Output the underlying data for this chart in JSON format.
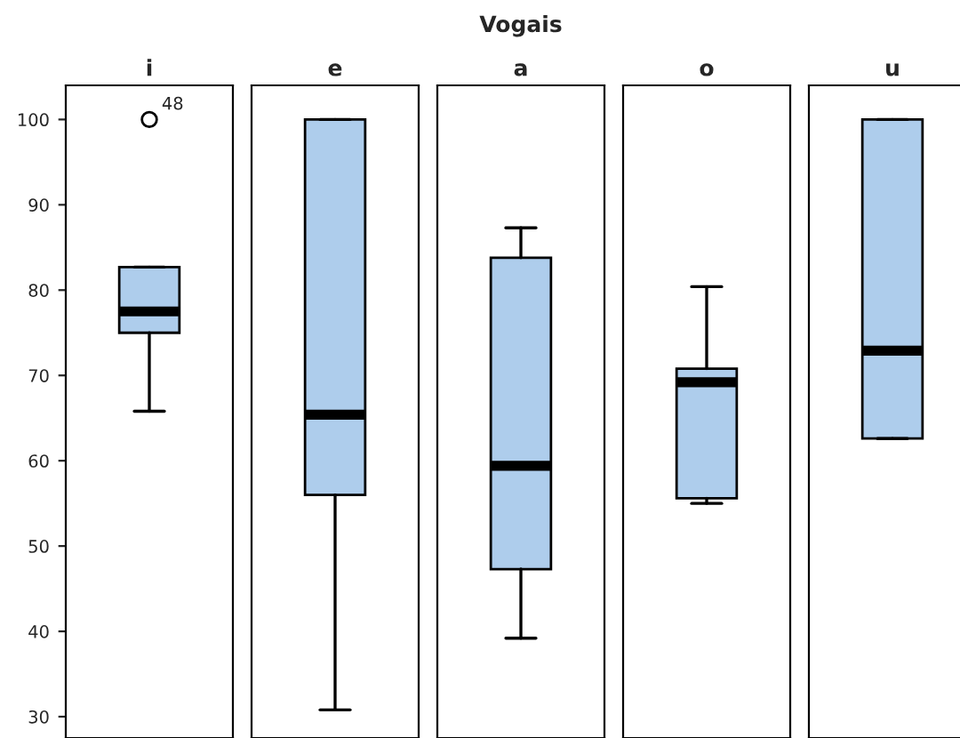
{
  "chart_data": {
    "type": "box",
    "title": "Vogais",
    "categories": [
      "i",
      "e",
      "a",
      "o",
      "u"
    ],
    "color": "#aecdec",
    "boxes": [
      {
        "low": 65.8,
        "q1": 75,
        "median": 77.5,
        "q3": 82.7,
        "high": 82.7,
        "outliers": [
          100
        ]
      },
      {
        "low": 30.8,
        "q1": 56,
        "median": 65.4,
        "q3": 100,
        "high": 100
      },
      {
        "low": 39.2,
        "q1": 47.3,
        "median": 59.4,
        "q3": 83.8,
        "high": 87.3
      },
      {
        "low": 55,
        "q1": 55.6,
        "median": 69.2,
        "q3": 70.8,
        "high": 80.4
      },
      {
        "low": 62.6,
        "q1": 62.6,
        "median": 72.9,
        "q3": 100,
        "high": 100
      }
    ],
    "ylim": [
      27.5,
      104
    ],
    "yticks": [
      30,
      40,
      50,
      60,
      70,
      80,
      90,
      100
    ],
    "annotations": [
      "48"
    ]
  }
}
